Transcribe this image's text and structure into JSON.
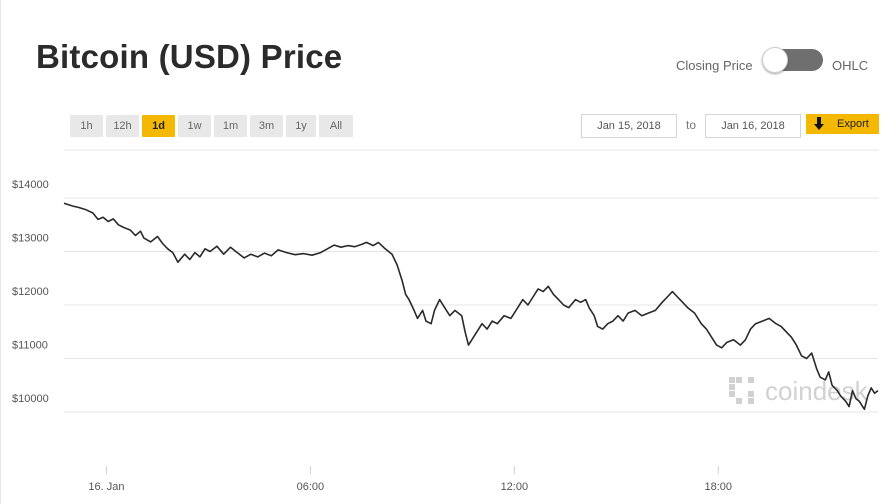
{
  "header": {
    "title": "Bitcoin (USD) Price",
    "toggle_left_label": "Closing Price",
    "toggle_right_label": "OHLC"
  },
  "ranges": [
    {
      "label": "1h",
      "active": false
    },
    {
      "label": "12h",
      "active": false
    },
    {
      "label": "1d",
      "active": true
    },
    {
      "label": "1w",
      "active": false
    },
    {
      "label": "1m",
      "active": false
    },
    {
      "label": "3m",
      "active": false
    },
    {
      "label": "1y",
      "active": false
    },
    {
      "label": "All",
      "active": false
    }
  ],
  "date_range": {
    "from": "Jan 15, 2018",
    "to_label": "to",
    "to": "Jan 16, 2018",
    "export_label": "Export"
  },
  "watermark": "coindesk",
  "colors": {
    "accent": "#f5b800",
    "line": "#2a2a2a",
    "grid": "#e4e4e4"
  },
  "chart_data": {
    "type": "line",
    "title": "Bitcoin (USD) Price",
    "xlabel": "",
    "ylabel": "",
    "ylim": [
      9000,
      15000
    ],
    "xlim": [
      -1.25,
      22.7
    ],
    "y_ticks": [
      {
        "value": 10000,
        "label": "$10000"
      },
      {
        "value": 11000,
        "label": "$11000"
      },
      {
        "value": 12000,
        "label": "$12000"
      },
      {
        "value": 13000,
        "label": "$13000"
      },
      {
        "value": 14000,
        "label": "$14000"
      }
    ],
    "x_ticks": [
      {
        "value": 0,
        "label": "16. Jan"
      },
      {
        "value": 6,
        "label": "06:00"
      },
      {
        "value": 12,
        "label": "12:00"
      },
      {
        "value": 18,
        "label": "18:00"
      }
    ],
    "grid": true,
    "series": [
      {
        "values": [
          [
            -1.25,
            13900
          ],
          [
            -1.0,
            13850
          ],
          [
            -0.8,
            13820
          ],
          [
            -0.6,
            13780
          ],
          [
            -0.4,
            13720
          ],
          [
            -0.25,
            13600
          ],
          [
            -0.1,
            13640
          ],
          [
            0.05,
            13560
          ],
          [
            0.2,
            13610
          ],
          [
            0.35,
            13500
          ],
          [
            0.5,
            13450
          ],
          [
            0.7,
            13400
          ],
          [
            0.85,
            13300
          ],
          [
            1.0,
            13380
          ],
          [
            1.1,
            13250
          ],
          [
            1.3,
            13180
          ],
          [
            1.5,
            13280
          ],
          [
            1.65,
            13150
          ],
          [
            1.8,
            13050
          ],
          [
            1.95,
            12980
          ],
          [
            2.1,
            12800
          ],
          [
            2.3,
            12950
          ],
          [
            2.45,
            12850
          ],
          [
            2.6,
            12980
          ],
          [
            2.75,
            12900
          ],
          [
            2.9,
            13050
          ],
          [
            3.05,
            13000
          ],
          [
            3.25,
            13100
          ],
          [
            3.45,
            12950
          ],
          [
            3.65,
            13080
          ],
          [
            3.85,
            12980
          ],
          [
            4.05,
            12880
          ],
          [
            4.25,
            12950
          ],
          [
            4.45,
            12900
          ],
          [
            4.65,
            12970
          ],
          [
            4.85,
            12920
          ],
          [
            5.05,
            13030
          ],
          [
            5.3,
            12980
          ],
          [
            5.55,
            12940
          ],
          [
            5.8,
            12960
          ],
          [
            6.05,
            12930
          ],
          [
            6.3,
            12980
          ],
          [
            6.5,
            13050
          ],
          [
            6.7,
            13120
          ],
          [
            6.9,
            13080
          ],
          [
            7.1,
            13110
          ],
          [
            7.3,
            13090
          ],
          [
            7.5,
            13130
          ],
          [
            7.65,
            13170
          ],
          [
            7.85,
            13110
          ],
          [
            8.0,
            13170
          ],
          [
            8.2,
            13050
          ],
          [
            8.4,
            12950
          ],
          [
            8.55,
            12750
          ],
          [
            8.7,
            12450
          ],
          [
            8.8,
            12200
          ],
          [
            8.9,
            12100
          ],
          [
            9.05,
            11900
          ],
          [
            9.15,
            11750
          ],
          [
            9.3,
            11900
          ],
          [
            9.4,
            11700
          ],
          [
            9.55,
            11650
          ],
          [
            9.65,
            11900
          ],
          [
            9.8,
            12100
          ],
          [
            9.95,
            11950
          ],
          [
            10.1,
            11800
          ],
          [
            10.25,
            11900
          ],
          [
            10.45,
            11800
          ],
          [
            10.55,
            11500
          ],
          [
            10.65,
            11250
          ],
          [
            10.75,
            11350
          ],
          [
            10.9,
            11500
          ],
          [
            11.05,
            11650
          ],
          [
            11.2,
            11550
          ],
          [
            11.35,
            11700
          ],
          [
            11.5,
            11650
          ],
          [
            11.7,
            11800
          ],
          [
            11.9,
            11750
          ],
          [
            12.1,
            11950
          ],
          [
            12.25,
            12100
          ],
          [
            12.4,
            12000
          ],
          [
            12.55,
            12150
          ],
          [
            12.7,
            12300
          ],
          [
            12.85,
            12250
          ],
          [
            13.0,
            12350
          ],
          [
            13.15,
            12200
          ],
          [
            13.3,
            12100
          ],
          [
            13.45,
            12000
          ],
          [
            13.6,
            11950
          ],
          [
            13.8,
            12100
          ],
          [
            13.95,
            12050
          ],
          [
            14.1,
            12100
          ],
          [
            14.2,
            11950
          ],
          [
            14.35,
            11800
          ],
          [
            14.45,
            11600
          ],
          [
            14.6,
            11550
          ],
          [
            14.75,
            11650
          ],
          [
            14.9,
            11700
          ],
          [
            15.05,
            11800
          ],
          [
            15.2,
            11700
          ],
          [
            15.35,
            11850
          ],
          [
            15.55,
            11900
          ],
          [
            15.75,
            11800
          ],
          [
            15.95,
            11850
          ],
          [
            16.15,
            11900
          ],
          [
            16.35,
            12050
          ],
          [
            16.5,
            12150
          ],
          [
            16.65,
            12250
          ],
          [
            16.8,
            12150
          ],
          [
            16.95,
            12050
          ],
          [
            17.1,
            11950
          ],
          [
            17.3,
            11850
          ],
          [
            17.5,
            11650
          ],
          [
            17.65,
            11550
          ],
          [
            17.8,
            11400
          ],
          [
            17.95,
            11250
          ],
          [
            18.1,
            11200
          ],
          [
            18.25,
            11300
          ],
          [
            18.45,
            11350
          ],
          [
            18.65,
            11250
          ],
          [
            18.8,
            11350
          ],
          [
            18.95,
            11550
          ],
          [
            19.1,
            11650
          ],
          [
            19.3,
            11700
          ],
          [
            19.5,
            11750
          ],
          [
            19.7,
            11650
          ],
          [
            19.85,
            11600
          ],
          [
            20.0,
            11500
          ],
          [
            20.15,
            11400
          ],
          [
            20.3,
            11250
          ],
          [
            20.45,
            11050
          ],
          [
            20.6,
            11000
          ],
          [
            20.75,
            11100
          ],
          [
            20.9,
            10800
          ],
          [
            21.0,
            10650
          ],
          [
            21.15,
            10600
          ],
          [
            21.25,
            10750
          ],
          [
            21.35,
            10500
          ],
          [
            21.5,
            10400
          ],
          [
            21.6,
            10300
          ],
          [
            21.75,
            10200
          ],
          [
            21.85,
            10100
          ],
          [
            21.95,
            10400
          ],
          [
            22.05,
            10250
          ],
          [
            22.15,
            10200
          ],
          [
            22.3,
            10050
          ],
          [
            22.4,
            10300
          ],
          [
            22.5,
            10450
          ],
          [
            22.6,
            10350
          ],
          [
            22.7,
            10400
          ]
        ]
      }
    ]
  }
}
